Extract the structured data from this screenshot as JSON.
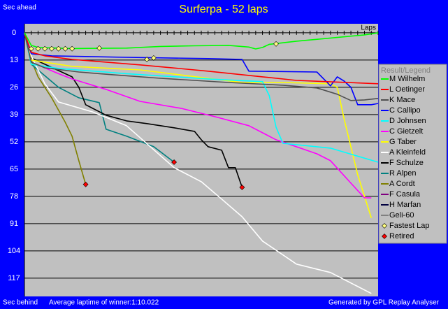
{
  "chart_data": {
    "type": "line",
    "title": "Surferpa - 52 laps",
    "y_label_top": "Sec ahead",
    "y_label_bottom": "Sec behind",
    "x_label": "Laps",
    "footer_left": "Average laptime of winner:1:10.022",
    "footer_right": "Generated by GPL Replay Analyser",
    "legend_title": "Result/Legend",
    "y_inverted": true,
    "grid": true,
    "xlim": [
      0,
      52
    ],
    "ylim": [
      -4.3,
      125.7
    ],
    "yticks": [
      0,
      13,
      26,
      39,
      52,
      65,
      78,
      91,
      104,
      117
    ],
    "xticks": [
      0,
      1,
      2,
      3,
      4,
      5,
      6,
      7,
      8,
      9,
      10,
      11,
      12,
      13,
      14,
      15,
      16,
      17,
      18,
      19,
      20,
      21,
      22,
      23,
      24,
      25,
      26,
      27,
      28,
      29,
      30,
      31,
      32,
      33,
      34,
      35,
      36,
      37,
      38,
      39,
      40,
      41,
      42,
      43,
      44,
      45,
      46,
      47,
      48,
      49,
      50,
      51,
      52
    ],
    "series": [
      {
        "name": "M Wilhelm",
        "color": "#00ff00",
        "x": [
          0,
          1,
          2,
          7,
          15,
          20,
          25,
          30,
          33,
          34,
          35,
          36,
          40,
          45,
          50,
          52
        ],
        "values": [
          0,
          6,
          7,
          7.5,
          7.3,
          6.5,
          6.2,
          6,
          6.8,
          7.7,
          7,
          5.5,
          4,
          2.5,
          1,
          0
        ]
      },
      {
        "name": "L Oetinger",
        "color": "#ff0000",
        "x": [
          0,
          1,
          3,
          7,
          17,
          27,
          35,
          40,
          46,
          52
        ],
        "values": [
          0,
          9.3,
          11,
          12.7,
          15.3,
          18.3,
          21,
          22.7,
          23.5,
          24.3
        ]
      },
      {
        "name": "K Mace",
        "color": "#505050",
        "x": [
          0,
          1,
          3,
          8,
          13,
          20,
          30,
          38,
          43,
          46,
          48,
          50,
          52
        ],
        "values": [
          0,
          14,
          16.7,
          18.7,
          20,
          21.7,
          23.7,
          25,
          26.3,
          29.3,
          32.3,
          32,
          31.3
        ]
      },
      {
        "name": "C Callipo",
        "color": "#0000ff",
        "x": [
          0,
          1,
          4,
          15,
          27,
          32,
          33,
          43,
          44,
          45,
          46,
          47,
          48,
          49,
          51,
          52
        ],
        "values": [
          0,
          10,
          11,
          11.7,
          12.3,
          12.7,
          18.3,
          18.7,
          22,
          25.3,
          21,
          23,
          26,
          34.3,
          34.3,
          33.7
        ]
      },
      {
        "name": "D Johnsen",
        "color": "#00ffff",
        "x": [
          0,
          1,
          5,
          15,
          27,
          35,
          36,
          37,
          38,
          45,
          52
        ],
        "values": [
          0,
          15,
          17,
          19.5,
          22,
          23.3,
          30,
          45,
          52.7,
          55,
          61.7
        ]
      },
      {
        "name": "C Gietzelt",
        "color": "#ff00ff",
        "x": [
          0,
          1,
          5,
          7,
          12,
          17,
          23,
          28,
          33,
          37,
          43,
          45,
          48,
          50,
          51
        ],
        "values": [
          0,
          14,
          19.5,
          22,
          27,
          32.7,
          36,
          40,
          44.3,
          51,
          57.7,
          61,
          71.7,
          78.7,
          78.7
        ]
      },
      {
        "name": "G Taber",
        "color": "#ffff00",
        "x": [
          0,
          1,
          7,
          17,
          27,
          32,
          38,
          45,
          46,
          47,
          49,
          51
        ],
        "values": [
          0,
          13,
          16,
          17.7,
          21.7,
          23.7,
          23.7,
          24.3,
          26,
          41,
          67.7,
          88.3
        ]
      },
      {
        "name": "A Kleinfeld",
        "color": "#ffffff",
        "x": [
          0,
          1,
          3,
          5,
          10,
          15,
          22,
          26,
          29,
          32,
          35,
          40,
          45,
          48,
          51
        ],
        "values": [
          0,
          11,
          24.3,
          33,
          37.7,
          44.3,
          64.3,
          71,
          79.3,
          87.7,
          99.3,
          110.3,
          114.3,
          119.3,
          124.3
        ]
      },
      {
        "name": "F Schulze",
        "color": "#000000",
        "x": [
          0,
          1,
          7,
          8,
          9,
          12,
          15,
          18,
          22,
          25,
          26,
          27,
          29,
          30,
          31,
          32
        ],
        "values": [
          0,
          12,
          21,
          26,
          34.3,
          39.3,
          42,
          43.3,
          45.3,
          47,
          51,
          54.3,
          56,
          64.3,
          64.3,
          73.7
        ]
      },
      {
        "name": "R Alpen",
        "color": "#008080",
        "x": [
          0,
          1,
          5,
          8,
          11,
          12,
          15,
          19,
          22
        ],
        "values": [
          0,
          15,
          26,
          31,
          33.3,
          46,
          49.3,
          54.3,
          61.7
        ]
      },
      {
        "name": "A Cordt",
        "color": "#808000",
        "x": [
          0,
          1,
          2,
          4,
          6,
          7,
          8,
          9
        ],
        "values": [
          0,
          13,
          21,
          31,
          42.7,
          49.3,
          61,
          72.3
        ]
      }
    ],
    "legend_only": [
      {
        "name": "F Casula",
        "color": "#800080"
      },
      {
        "name": "H Marfan",
        "color": "#000040"
      },
      {
        "name": "Geli-60",
        "color": "#808080"
      }
    ],
    "fastest_lap": {
      "name": "Fastest Lap",
      "color": "#ffff80",
      "x": [
        1,
        2,
        3,
        4,
        5,
        6,
        7,
        11,
        18,
        19,
        37
      ],
      "values": [
        7.6,
        7.6,
        7.6,
        7.6,
        7.6,
        7.6,
        7.6,
        7.3,
        12.7,
        12,
        5.3
      ]
    },
    "retired": {
      "name": "Retired",
      "color": "#ff0000",
      "x": [
        9,
        22,
        32
      ],
      "values": [
        72.3,
        61.7,
        73.7
      ]
    }
  }
}
